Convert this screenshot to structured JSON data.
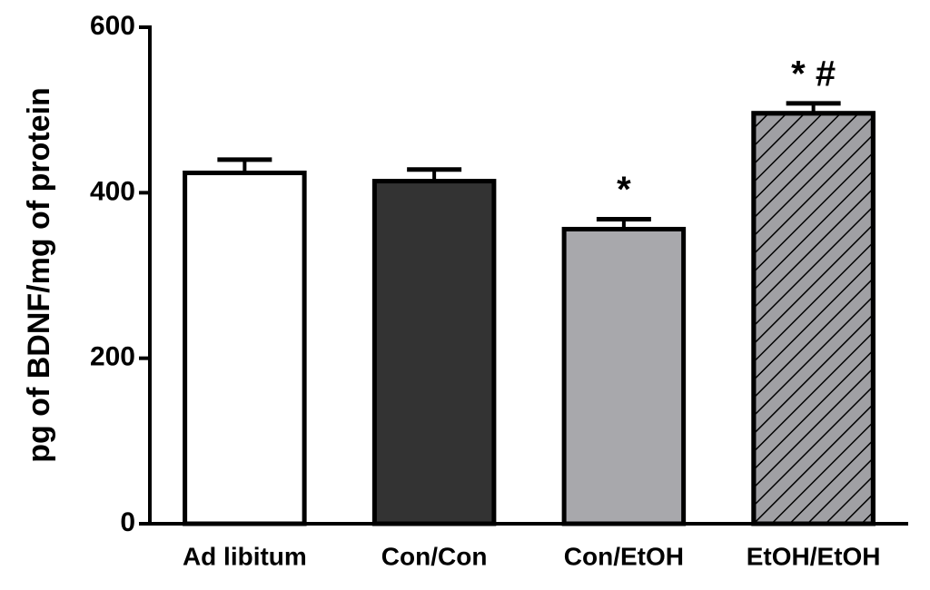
{
  "chart_data": {
    "type": "bar",
    "y_label": "pg of BDNF/mg of protein",
    "categories": [
      "Ad libitum",
      "Con/Con",
      "Con/EtOH",
      "EtOH/EtOH"
    ],
    "values": [
      424,
      414,
      356,
      496
    ],
    "errors": [
      16,
      14,
      12,
      12
    ],
    "annotations": [
      null,
      null,
      "*",
      "* #"
    ],
    "colors": [
      "#ffffff",
      "#333333",
      "#a8a8ac",
      "#a0a0a4"
    ],
    "hatch": [
      false,
      false,
      false,
      true
    ],
    "ylim": [
      0,
      600
    ],
    "yticks": [
      0,
      200,
      400,
      600
    ]
  }
}
